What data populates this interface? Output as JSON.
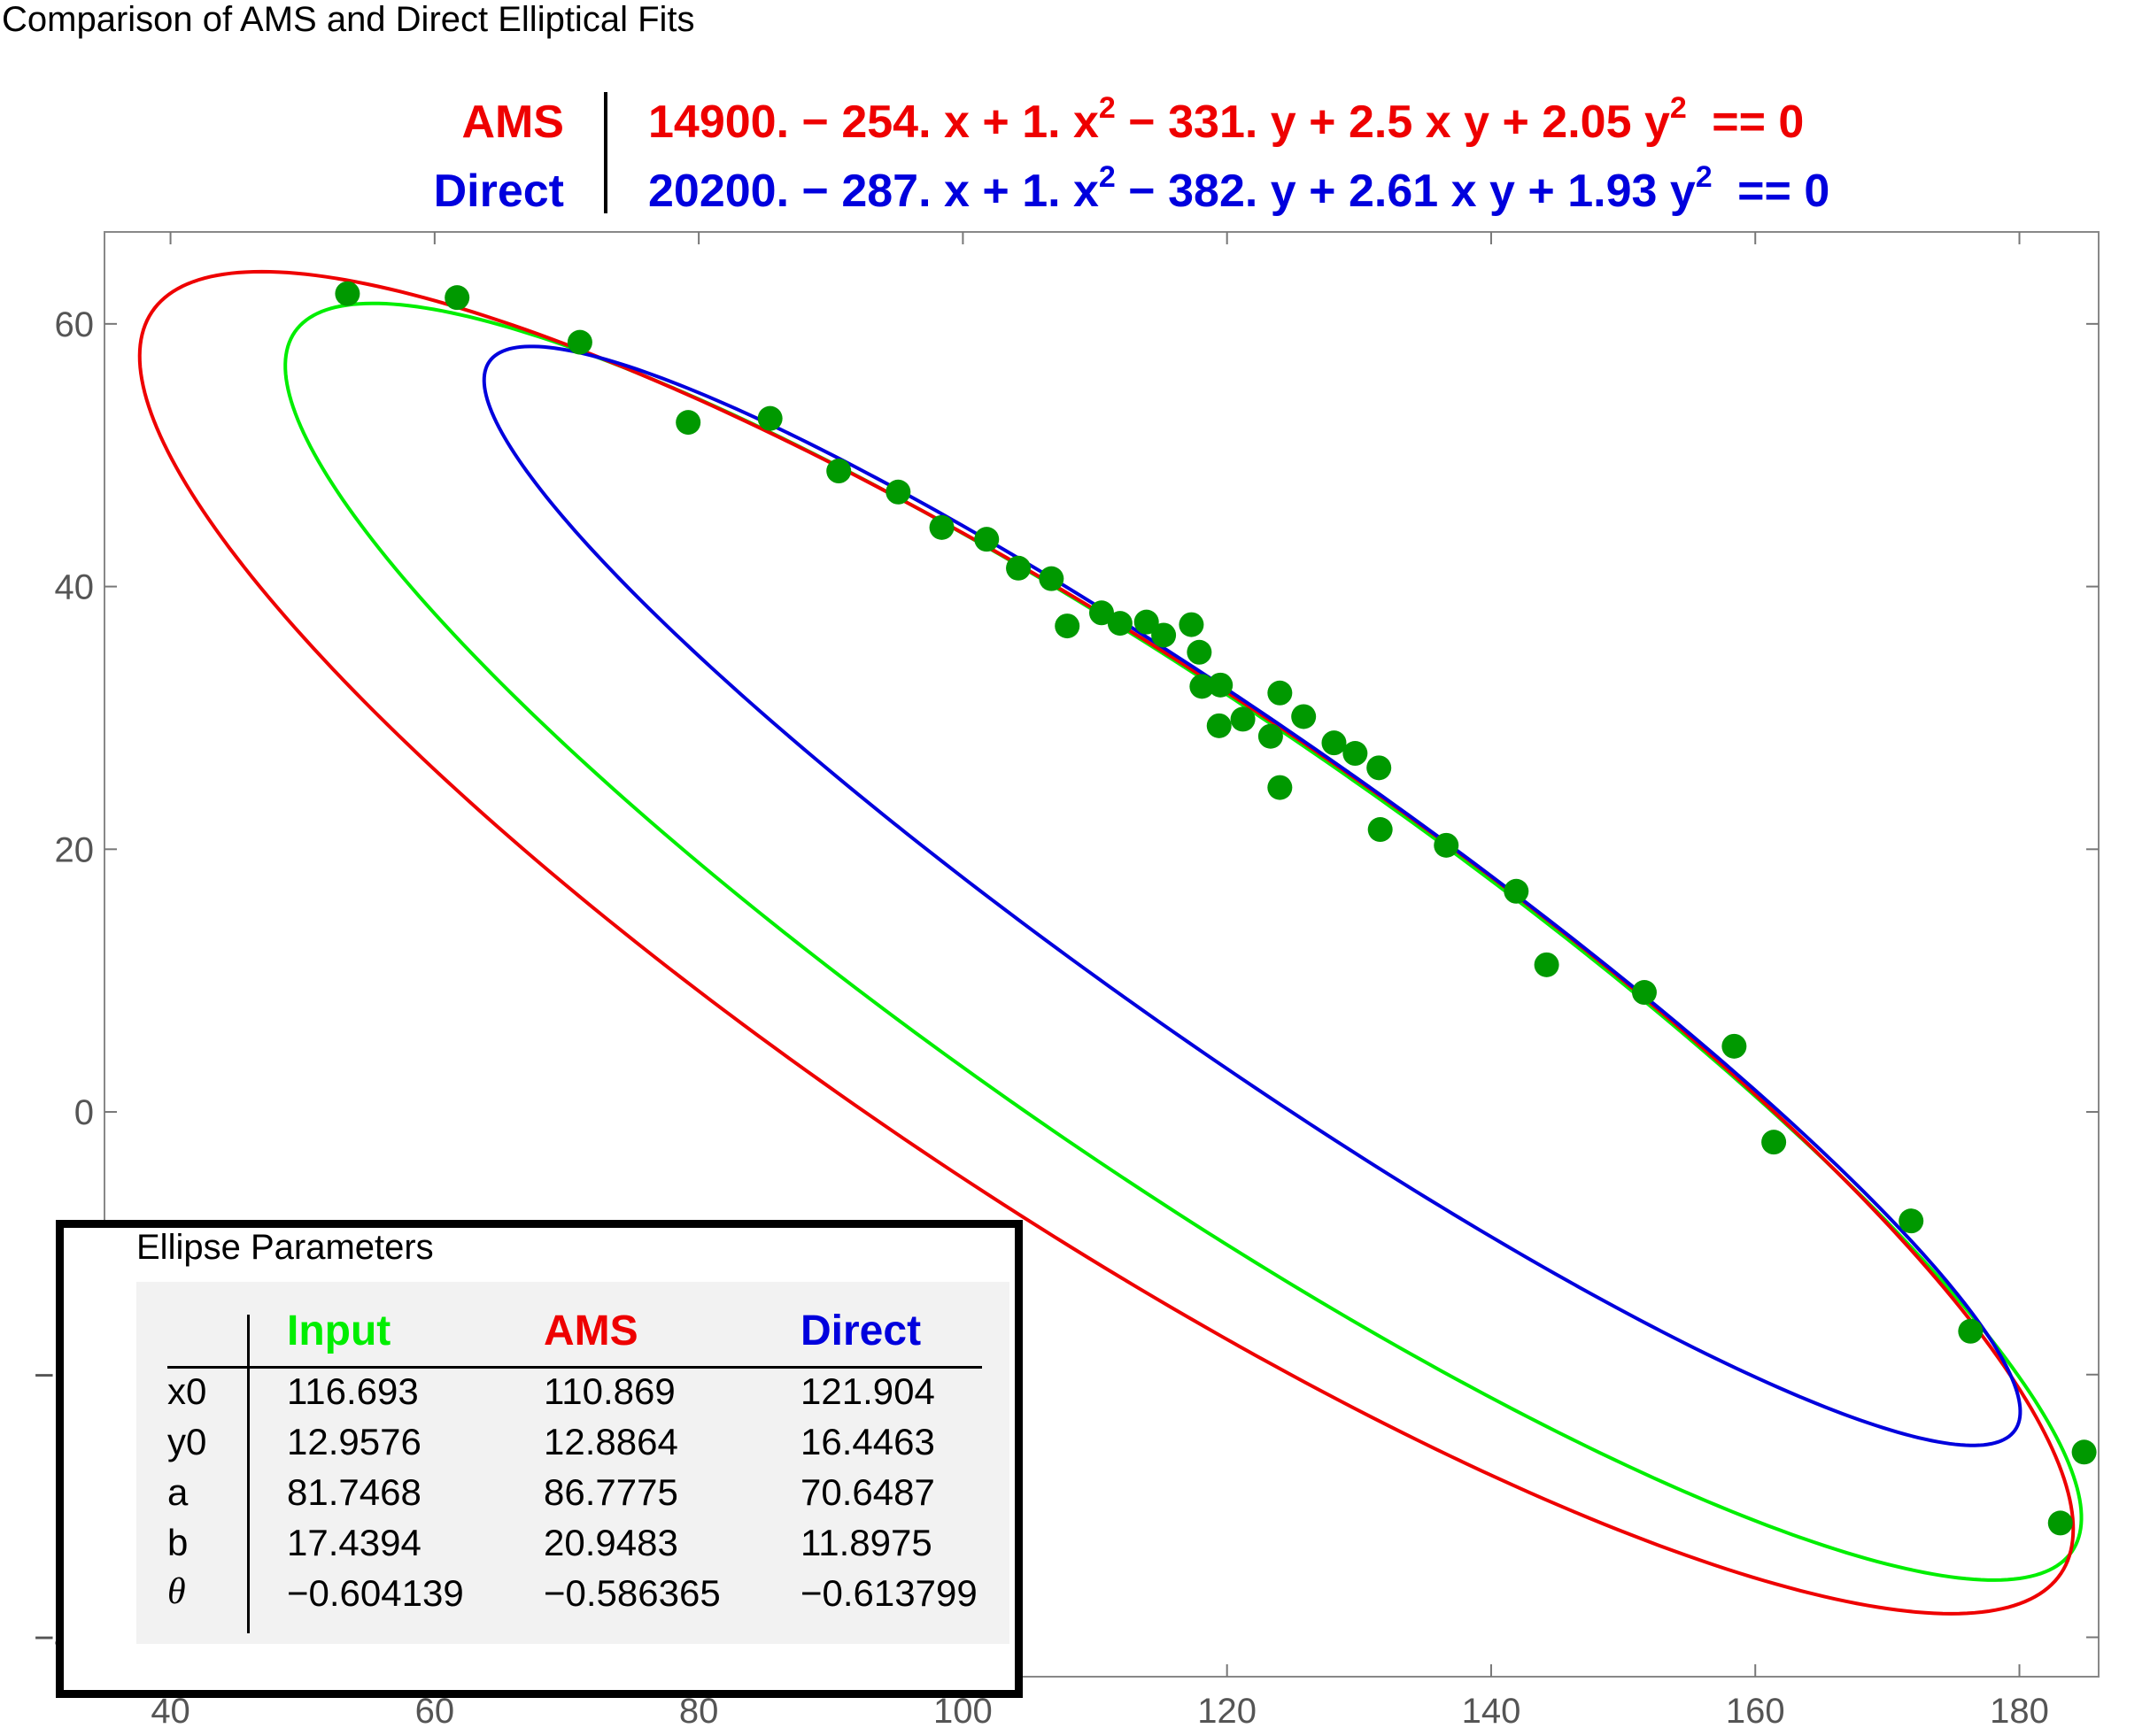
{
  "title": "Comparison of AMS and Direct Elliptical Fits",
  "colors": {
    "input": "#00ee00",
    "ams": "#ee0000",
    "direct": "#0000dd",
    "points": "#009900",
    "axis": "#777777",
    "tick_label": "#555555"
  },
  "legend": [
    {
      "name": "AMS",
      "color": "#ee0000",
      "equation": {
        "c0": "14900.",
        "cx": "254. x",
        "cxx": "1. x",
        "cy": "331. y",
        "cxy": "2.5 x y",
        "cyy": "2.05 y",
        "tail": "== 0"
      }
    },
    {
      "name": "Direct",
      "color": "#0000dd",
      "equation": {
        "c0": "20200.",
        "cx": "287. x",
        "cxx": "1. x",
        "cy": "382. y",
        "cxy": "2.61 x y",
        "cyy": "1.93 y",
        "tail": "== 0"
      }
    }
  ],
  "chart_data": {
    "type": "scatter",
    "title": "Comparison of AMS and Direct Elliptical Fits",
    "xlim": [
      35,
      186
    ],
    "ylim": [
      -43,
      67
    ],
    "x_ticks": [
      "40",
      "60",
      "80",
      "100",
      "120",
      "140",
      "160",
      "180"
    ],
    "y_ticks": [
      "60",
      "40",
      "20",
      "0",
      "−20",
      "−40"
    ],
    "x_tick_values": [
      40,
      60,
      80,
      100,
      120,
      140,
      160,
      180
    ],
    "y_tick_values": [
      60,
      40,
      20,
      0,
      -20,
      -40
    ],
    "points": [
      [
        53.4,
        62.3
      ],
      [
        61.7,
        62.0
      ],
      [
        71.0,
        58.6
      ],
      [
        79.2,
        52.5
      ],
      [
        85.4,
        52.8
      ],
      [
        90.6,
        48.8
      ],
      [
        95.1,
        47.2
      ],
      [
        98.4,
        44.5
      ],
      [
        101.8,
        43.6
      ],
      [
        104.2,
        41.4
      ],
      [
        106.7,
        40.6
      ],
      [
        107.9,
        37.0
      ],
      [
        110.5,
        38.0
      ],
      [
        111.9,
        37.2
      ],
      [
        113.9,
        37.3
      ],
      [
        115.2,
        36.3
      ],
      [
        117.3,
        37.1
      ],
      [
        117.9,
        35.0
      ],
      [
        118.1,
        32.4
      ],
      [
        119.5,
        32.5
      ],
      [
        119.4,
        29.4
      ],
      [
        121.2,
        29.9
      ],
      [
        123.3,
        28.6
      ],
      [
        124.0,
        31.9
      ],
      [
        124.0,
        24.7
      ],
      [
        125.8,
        30.1
      ],
      [
        128.1,
        28.1
      ],
      [
        129.7,
        27.3
      ],
      [
        131.5,
        26.2
      ],
      [
        131.6,
        21.5
      ],
      [
        136.6,
        20.3
      ],
      [
        141.9,
        16.8
      ],
      [
        144.2,
        11.2
      ],
      [
        151.6,
        9.1
      ],
      [
        158.4,
        5.0
      ],
      [
        161.4,
        -2.3
      ],
      [
        171.8,
        -8.3
      ],
      [
        176.3,
        -16.7
      ],
      [
        183.1,
        -31.3
      ],
      [
        184.9,
        -25.9
      ]
    ],
    "ellipses": [
      {
        "name": "Input",
        "x0": 116.693,
        "y0": 12.9576,
        "a": 81.7468,
        "b": 17.4394,
        "theta": -0.604139
      },
      {
        "name": "AMS",
        "x0": 110.869,
        "y0": 12.8864,
        "a": 86.7775,
        "b": 20.9483,
        "theta": -0.586365
      },
      {
        "name": "Direct",
        "x0": 121.904,
        "y0": 16.4463,
        "a": 70.6487,
        "b": 11.8975,
        "theta": -0.613799
      }
    ],
    "grid": false,
    "legend_position": "top"
  },
  "params": {
    "title": "Ellipse Parameters",
    "headers": [
      "Input",
      "AMS",
      "Direct"
    ],
    "rows": [
      {
        "label": "x0",
        "values": [
          "116.693",
          "110.869",
          "121.904"
        ]
      },
      {
        "label": "y0",
        "values": [
          "12.9576",
          "12.8864",
          "16.4463"
        ]
      },
      {
        "label": "a",
        "values": [
          "81.7468",
          "86.7775",
          "70.6487"
        ]
      },
      {
        "label": "b",
        "values": [
          "17.4394",
          "20.9483",
          "11.8975"
        ]
      },
      {
        "label": "θ",
        "values": [
          "−0.604139",
          "−0.586365",
          "−0.613799"
        ]
      }
    ]
  }
}
